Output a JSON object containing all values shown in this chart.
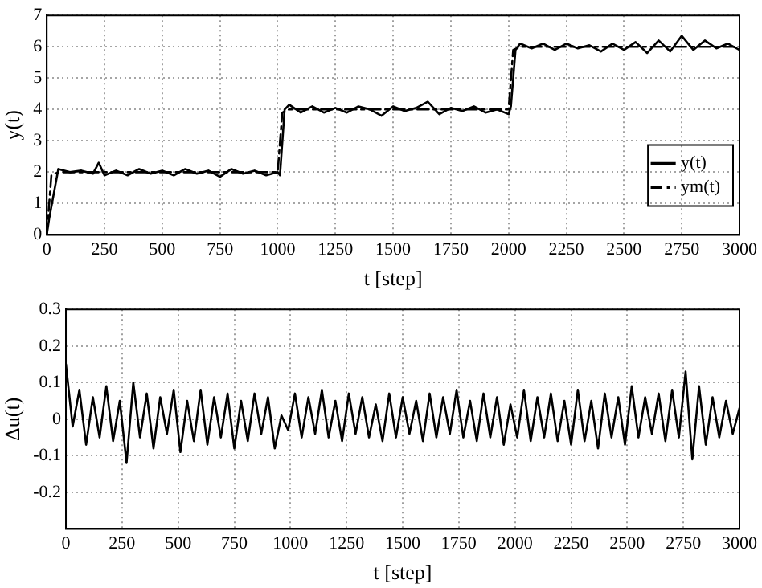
{
  "chart_data": [
    {
      "type": "line",
      "xlabel": "t [step]",
      "ylabel": "y(t)",
      "xlim": [
        0,
        3000
      ],
      "xticks": [
        0,
        250,
        500,
        750,
        1000,
        1250,
        1500,
        1750,
        2000,
        2250,
        2500,
        2750,
        3000
      ],
      "ylim": [
        0,
        7
      ],
      "yticks": [
        0,
        1,
        2,
        3,
        4,
        5,
        6,
        7
      ],
      "grid": true,
      "legend": "bottom right",
      "marker": "none",
      "series": [
        {
          "name": "y(t)",
          "color": "#000000",
          "line_style": "solid",
          "x": [
            0,
            10,
            50,
            100,
            150,
            200,
            225,
            250,
            300,
            350,
            400,
            450,
            500,
            550,
            600,
            650,
            700,
            750,
            800,
            850,
            900,
            950,
            1000,
            1010,
            1030,
            1050,
            1100,
            1150,
            1200,
            1250,
            1300,
            1350,
            1400,
            1450,
            1500,
            1550,
            1600,
            1650,
            1700,
            1750,
            1800,
            1850,
            1900,
            1950,
            2000,
            2010,
            2030,
            2050,
            2100,
            2150,
            2200,
            2250,
            2300,
            2350,
            2400,
            2450,
            2500,
            2550,
            2600,
            2650,
            2700,
            2750,
            2800,
            2850,
            2900,
            2950,
            3000
          ],
          "values": [
            0,
            0.5,
            2.1,
            2.0,
            2.05,
            1.95,
            2.3,
            1.9,
            2.05,
            1.9,
            2.1,
            1.95,
            2.05,
            1.9,
            2.1,
            1.95,
            2.05,
            1.85,
            2.1,
            1.95,
            2.05,
            1.9,
            2.0,
            1.9,
            4.0,
            4.15,
            3.9,
            4.1,
            3.9,
            4.05,
            3.9,
            4.1,
            4.0,
            3.8,
            4.1,
            3.95,
            4.05,
            4.25,
            3.85,
            4.05,
            3.95,
            4.1,
            3.9,
            4.0,
            3.85,
            4.1,
            5.9,
            6.1,
            5.95,
            6.1,
            5.9,
            6.1,
            5.95,
            6.05,
            5.85,
            6.1,
            5.9,
            6.15,
            5.8,
            6.2,
            5.85,
            6.35,
            5.9,
            6.2,
            5.95,
            6.1,
            5.9
          ]
        },
        {
          "name": "ym(t)",
          "color": "#000000",
          "line_style": "dashed",
          "x": [
            0,
            20,
            50,
            1000,
            1020,
            1050,
            2000,
            2020,
            2050,
            3000
          ],
          "values": [
            0,
            1.9,
            2,
            2,
            3.9,
            4,
            4,
            5.9,
            6,
            6
          ]
        }
      ]
    },
    {
      "type": "line",
      "xlabel": "t [step]",
      "ylabel": "Δu(t)",
      "xlim": [
        0,
        3000
      ],
      "xticks": [
        0,
        250,
        500,
        750,
        1000,
        1250,
        1500,
        1750,
        2000,
        2250,
        2500,
        2750,
        3000
      ],
      "ylim": [
        -0.3,
        0.3
      ],
      "yticks": [
        -0.2,
        -0.1,
        0,
        0.1,
        0.2,
        0.3
      ],
      "grid": true,
      "marker": "none",
      "series": [
        {
          "color": "#000000",
          "line_style": "solid",
          "x": [
            0,
            30,
            60,
            90,
            120,
            150,
            180,
            210,
            240,
            270,
            300,
            330,
            360,
            390,
            420,
            450,
            480,
            510,
            540,
            570,
            600,
            630,
            660,
            690,
            720,
            750,
            780,
            810,
            840,
            870,
            900,
            930,
            960,
            990,
            1020,
            1050,
            1080,
            1110,
            1140,
            1170,
            1200,
            1230,
            1260,
            1290,
            1320,
            1350,
            1380,
            1410,
            1440,
            1470,
            1500,
            1530,
            1560,
            1590,
            1620,
            1650,
            1680,
            1710,
            1740,
            1770,
            1800,
            1830,
            1860,
            1890,
            1920,
            1950,
            1980,
            2010,
            2040,
            2070,
            2100,
            2130,
            2160,
            2190,
            2220,
            2250,
            2280,
            2310,
            2340,
            2370,
            2400,
            2430,
            2460,
            2490,
            2520,
            2550,
            2580,
            2610,
            2640,
            2670,
            2700,
            2730,
            2760,
            2790,
            2820,
            2850,
            2880,
            2910,
            2940,
            2970,
            3000
          ],
          "values": [
            0.15,
            -0.02,
            0.08,
            -0.07,
            0.06,
            -0.05,
            0.09,
            -0.06,
            0.05,
            -0.12,
            0.1,
            -0.05,
            0.07,
            -0.08,
            0.06,
            -0.04,
            0.08,
            -0.09,
            0.05,
            -0.06,
            0.08,
            -0.07,
            0.06,
            -0.05,
            0.07,
            -0.08,
            0.05,
            -0.06,
            0.07,
            -0.04,
            0.06,
            -0.08,
            0.01,
            -0.03,
            0.07,
            -0.05,
            0.06,
            -0.04,
            0.08,
            -0.05,
            0.05,
            -0.06,
            0.07,
            -0.04,
            0.06,
            -0.05,
            0.04,
            -0.06,
            0.07,
            -0.05,
            0.06,
            -0.04,
            0.05,
            -0.06,
            0.07,
            -0.05,
            0.06,
            -0.04,
            0.08,
            -0.05,
            0.05,
            -0.06,
            0.07,
            -0.05,
            0.06,
            -0.07,
            0.04,
            -0.05,
            0.08,
            -0.06,
            0.06,
            -0.05,
            0.07,
            -0.06,
            0.05,
            -0.07,
            0.08,
            -0.06,
            0.05,
            -0.08,
            0.07,
            -0.05,
            0.06,
            -0.07,
            0.09,
            -0.05,
            0.06,
            -0.04,
            0.07,
            -0.06,
            0.08,
            -0.05,
            0.13,
            -0.11,
            0.09,
            -0.07,
            0.06,
            -0.05,
            0.05,
            -0.04,
            0.03
          ]
        }
      ]
    }
  ]
}
